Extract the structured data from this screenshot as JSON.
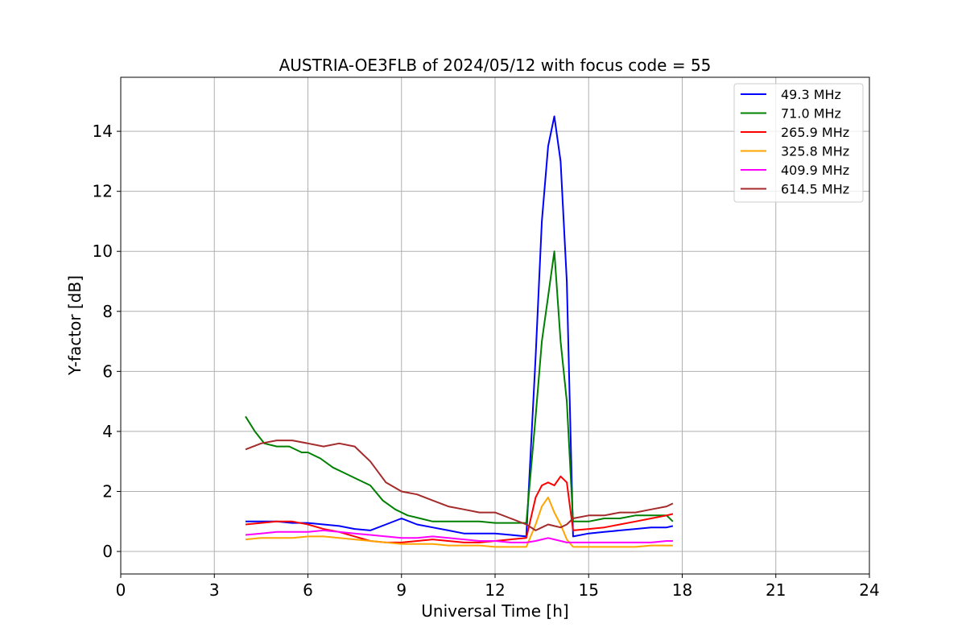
{
  "chart_data": {
    "type": "line",
    "title": "AUSTRIA-OE3FLB of 2024/05/12 with focus code = 55",
    "xlabel": "Universal Time [h]",
    "ylabel": "Y-factor [dB]",
    "xlim": [
      0,
      24
    ],
    "ylim": [
      -0.75,
      15.8
    ],
    "xticks": [
      0,
      3,
      6,
      9,
      12,
      15,
      18,
      21,
      24
    ],
    "xtick_labels": [
      "0",
      "3",
      "6",
      "9",
      "12",
      "15",
      "18",
      "21",
      "24"
    ],
    "yticks": [
      0,
      2,
      4,
      6,
      8,
      10,
      12,
      14
    ],
    "ytick_labels": [
      "0",
      "2",
      "4",
      "6",
      "8",
      "10",
      "12",
      "14"
    ],
    "grid": true,
    "legend_position": "top-right",
    "series": [
      {
        "name": " 49.3 MHz",
        "color": "#0000ff",
        "x": [
          4.0,
          4.5,
          5.0,
          5.5,
          6.0,
          6.5,
          7.0,
          7.5,
          8.0,
          8.5,
          9.0,
          9.5,
          10.0,
          10.5,
          11.0,
          11.5,
          12.0,
          12.5,
          13.0,
          13.3,
          13.5,
          13.7,
          13.9,
          14.1,
          14.3,
          14.5,
          15.0,
          15.5,
          16.0,
          16.5,
          17.0,
          17.5,
          17.7
        ],
        "y": [
          1.0,
          1.0,
          1.0,
          0.95,
          0.95,
          0.9,
          0.85,
          0.75,
          0.7,
          0.9,
          1.1,
          0.9,
          0.8,
          0.7,
          0.6,
          0.6,
          0.6,
          0.55,
          0.5,
          6.5,
          11.0,
          13.5,
          14.5,
          13.0,
          9.0,
          0.5,
          0.6,
          0.65,
          0.7,
          0.75,
          0.8,
          0.8,
          0.85
        ]
      },
      {
        "name": " 71.0 MHz",
        "color": "#008000",
        "x": [
          4.0,
          4.3,
          4.6,
          5.0,
          5.4,
          5.8,
          6.0,
          6.4,
          6.8,
          7.2,
          7.6,
          8.0,
          8.4,
          8.8,
          9.2,
          9.6,
          10.0,
          10.5,
          11.0,
          11.5,
          12.0,
          12.5,
          13.0,
          13.3,
          13.5,
          13.7,
          13.9,
          14.1,
          14.3,
          14.5,
          15.0,
          15.5,
          16.0,
          16.5,
          17.0,
          17.5,
          17.7
        ],
        "y": [
          4.5,
          4.0,
          3.6,
          3.5,
          3.5,
          3.3,
          3.3,
          3.1,
          2.8,
          2.6,
          2.4,
          2.2,
          1.7,
          1.4,
          1.2,
          1.1,
          1.0,
          1.0,
          1.0,
          1.0,
          0.95,
          0.95,
          0.95,
          4.5,
          7.0,
          8.5,
          10.0,
          7.0,
          5.0,
          1.0,
          1.0,
          1.1,
          1.1,
          1.2,
          1.2,
          1.2,
          1.0
        ]
      },
      {
        "name": " 265.9 MHz",
        "color": "#ff0000",
        "x": [
          4.0,
          4.5,
          5.0,
          5.5,
          6.0,
          6.5,
          7.0,
          7.5,
          8.0,
          8.5,
          9.0,
          9.5,
          10.0,
          10.5,
          11.0,
          11.5,
          12.0,
          12.5,
          13.0,
          13.3,
          13.5,
          13.7,
          13.9,
          14.1,
          14.3,
          14.5,
          15.0,
          15.5,
          16.0,
          16.5,
          17.0,
          17.5,
          17.7
        ],
        "y": [
          0.9,
          0.95,
          1.0,
          1.0,
          0.9,
          0.75,
          0.65,
          0.5,
          0.35,
          0.3,
          0.3,
          0.35,
          0.4,
          0.35,
          0.3,
          0.3,
          0.35,
          0.4,
          0.45,
          1.8,
          2.2,
          2.3,
          2.2,
          2.5,
          2.3,
          0.7,
          0.75,
          0.8,
          0.9,
          1.0,
          1.1,
          1.2,
          1.25
        ]
      },
      {
        "name": " 325.8 MHz",
        "color": "#ffa500",
        "x": [
          4.0,
          4.5,
          5.0,
          5.5,
          6.0,
          6.5,
          7.0,
          7.5,
          8.0,
          8.5,
          9.0,
          9.5,
          10.0,
          10.5,
          11.0,
          11.5,
          12.0,
          12.5,
          13.0,
          13.3,
          13.5,
          13.7,
          13.9,
          14.1,
          14.3,
          14.5,
          15.0,
          15.5,
          16.0,
          16.5,
          17.0,
          17.5,
          17.7
        ],
        "y": [
          0.4,
          0.45,
          0.45,
          0.45,
          0.5,
          0.5,
          0.45,
          0.4,
          0.35,
          0.3,
          0.25,
          0.25,
          0.25,
          0.2,
          0.2,
          0.2,
          0.15,
          0.15,
          0.15,
          0.9,
          1.5,
          1.8,
          1.3,
          0.9,
          0.4,
          0.15,
          0.15,
          0.15,
          0.15,
          0.15,
          0.2,
          0.2,
          0.2
        ]
      },
      {
        "name": " 409.9 MHz",
        "color": "#ff00ff",
        "x": [
          4.0,
          4.5,
          5.0,
          5.5,
          6.0,
          6.5,
          7.0,
          7.5,
          8.0,
          8.5,
          9.0,
          9.5,
          10.0,
          10.5,
          11.0,
          11.5,
          12.0,
          12.5,
          13.0,
          13.3,
          13.5,
          13.7,
          13.9,
          14.1,
          14.3,
          14.5,
          15.0,
          15.5,
          16.0,
          16.5,
          17.0,
          17.5,
          17.7
        ],
        "y": [
          0.55,
          0.6,
          0.65,
          0.65,
          0.65,
          0.7,
          0.65,
          0.6,
          0.55,
          0.5,
          0.45,
          0.45,
          0.5,
          0.45,
          0.4,
          0.35,
          0.35,
          0.3,
          0.3,
          0.35,
          0.4,
          0.45,
          0.4,
          0.35,
          0.3,
          0.3,
          0.3,
          0.3,
          0.3,
          0.3,
          0.3,
          0.35,
          0.35
        ]
      },
      {
        "name": " 614.5 MHz",
        "color": "#a52a2a",
        "x": [
          4.0,
          4.5,
          5.0,
          5.5,
          6.0,
          6.5,
          7.0,
          7.5,
          8.0,
          8.5,
          9.0,
          9.5,
          10.0,
          10.5,
          11.0,
          11.5,
          12.0,
          12.5,
          13.0,
          13.3,
          13.5,
          13.7,
          13.9,
          14.1,
          14.3,
          14.5,
          15.0,
          15.5,
          16.0,
          16.5,
          17.0,
          17.5,
          17.7
        ],
        "y": [
          3.4,
          3.6,
          3.7,
          3.7,
          3.6,
          3.5,
          3.6,
          3.5,
          3.0,
          2.3,
          2.0,
          1.9,
          1.7,
          1.5,
          1.4,
          1.3,
          1.3,
          1.1,
          0.9,
          0.7,
          0.8,
          0.9,
          0.85,
          0.8,
          0.9,
          1.1,
          1.2,
          1.2,
          1.3,
          1.3,
          1.4,
          1.5,
          1.6
        ]
      }
    ]
  }
}
